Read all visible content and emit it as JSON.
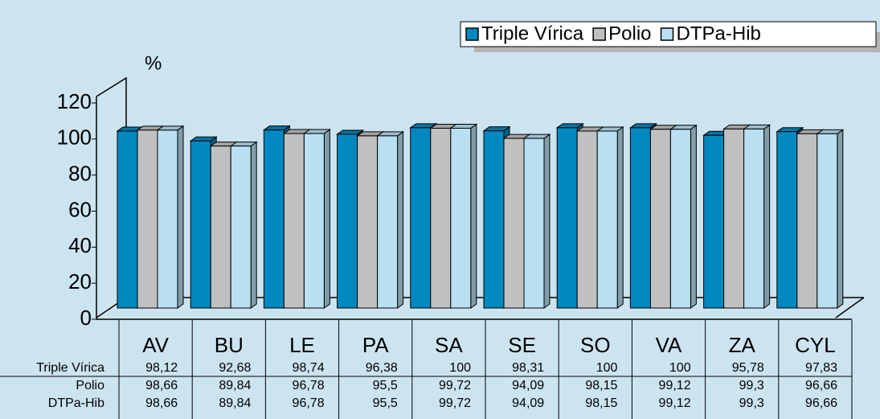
{
  "chart_data": {
    "type": "bar",
    "y_axis_label": "%",
    "categories": [
      "AV",
      "BU",
      "LE",
      "PA",
      "SA",
      "SE",
      "SO",
      "VA",
      "ZA",
      "CYL"
    ],
    "series": [
      {
        "name": "Triple Vírica",
        "color": "#0088c0",
        "values": [
          98.12,
          92.68,
          98.74,
          96.38,
          100,
          98.31,
          100,
          100,
          95.78,
          97.83
        ],
        "value_labels": [
          "98,12",
          "92,68",
          "98,74",
          "96,38",
          "100",
          "98,31",
          "100",
          "100",
          "95,78",
          "97,83"
        ]
      },
      {
        "name": "Polio",
        "color": "#c0c0c0",
        "values": [
          98.66,
          89.84,
          96.78,
          95.5,
          99.72,
          94.09,
          98.15,
          99.12,
          99.3,
          96.66
        ],
        "value_labels": [
          "98,66",
          "89,84",
          "96,78",
          "95,5",
          "99,72",
          "94,09",
          "98,15",
          "99,12",
          "99,3",
          "96,66"
        ]
      },
      {
        "name": "DTPa-Hib",
        "color": "#b8e0f2",
        "values": [
          98.66,
          89.84,
          96.78,
          95.5,
          99.72,
          94.09,
          98.15,
          99.12,
          99.3,
          96.66
        ],
        "value_labels": [
          "98,66",
          "89,84",
          "96,78",
          "95,5",
          "99,72",
          "94,09",
          "98,15",
          "99,12",
          "99,3",
          "96,66"
        ]
      }
    ],
    "ylim": [
      0,
      120
    ],
    "yticks": [
      0,
      20,
      40,
      60,
      80,
      100,
      120
    ],
    "grid": false,
    "legend": "top-right"
  }
}
